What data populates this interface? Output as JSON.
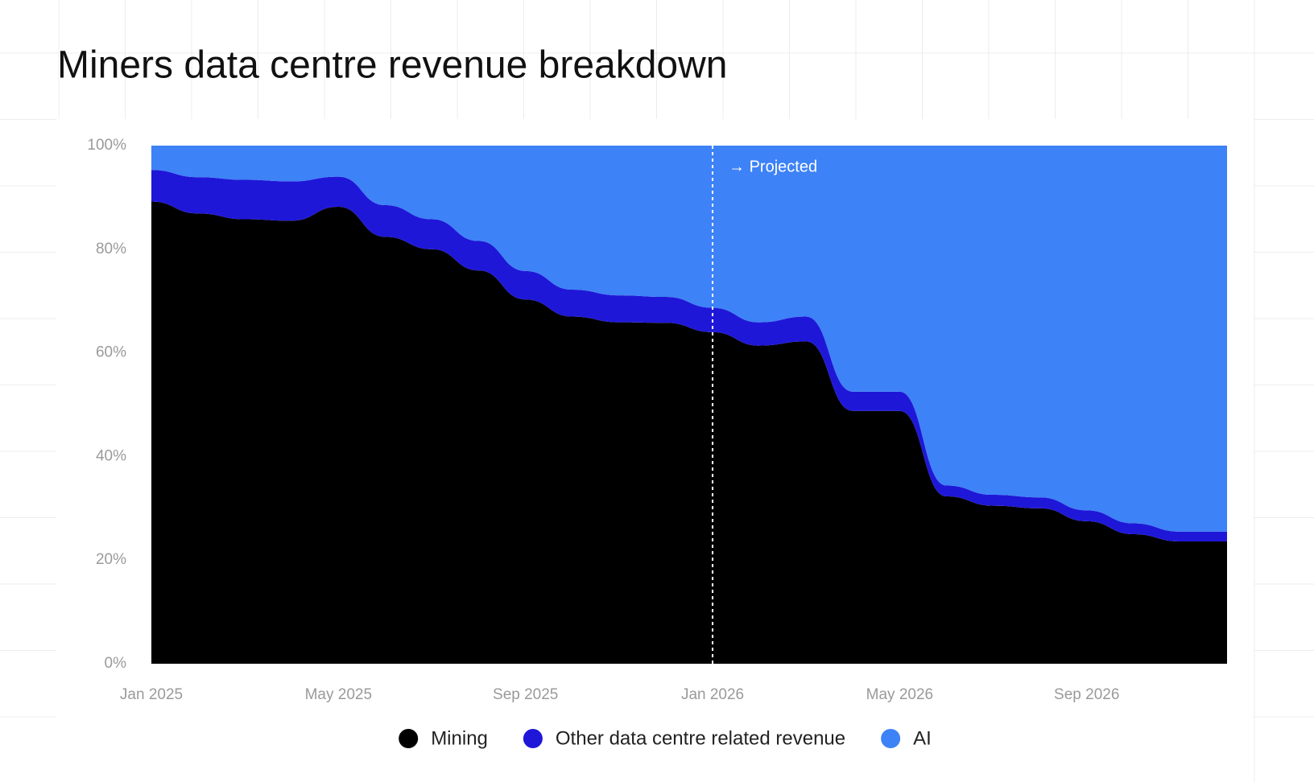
{
  "chart_data": {
    "type": "stacked_area",
    "title": "Miners data centre revenue breakdown",
    "categories": [
      "Jan 2025",
      null,
      null,
      null,
      "May 2025",
      null,
      null,
      null,
      "Sep 2025",
      null,
      null,
      null,
      "Jan 2026",
      null,
      null,
      null,
      "May 2026",
      null,
      null,
      null,
      "Sep 2026",
      null,
      null,
      null
    ],
    "series": [
      {
        "name": "Mining",
        "color": "#000000",
        "values": [
          89.2,
          86.9,
          85.8,
          85.5,
          88.2,
          82.4,
          80.0,
          75.9,
          70.3,
          67.0,
          65.9,
          65.8,
          64.0,
          61.4,
          62.2,
          48.8,
          48.8,
          32.3,
          30.5,
          30.0,
          27.5,
          25.0,
          23.6,
          23.6
        ]
      },
      {
        "name": "Other data centre related revenue",
        "color": "#1f17d8",
        "values": [
          6.1,
          7.0,
          7.6,
          7.6,
          5.8,
          6.1,
          5.8,
          5.7,
          5.5,
          5.2,
          5.2,
          5.0,
          4.7,
          4.5,
          4.8,
          3.7,
          3.7,
          2.1,
          2.1,
          2.1,
          2.1,
          2.1,
          1.9,
          1.9
        ]
      },
      {
        "name": "AI",
        "color": "#3d82f6",
        "values": [
          4.7,
          6.1,
          6.6,
          6.9,
          6.0,
          11.5,
          14.2,
          18.4,
          24.2,
          27.8,
          28.9,
          29.2,
          31.3,
          34.1,
          33.0,
          47.5,
          47.5,
          65.6,
          67.4,
          67.9,
          70.4,
          72.9,
          74.5,
          74.5
        ]
      }
    ],
    "ylim": [
      0,
      100
    ],
    "yticks": [
      {
        "value": 0,
        "label": "0%"
      },
      {
        "value": 20,
        "label": "20%"
      },
      {
        "value": 40,
        "label": "40%"
      },
      {
        "value": 60,
        "label": "60%"
      },
      {
        "value": 80,
        "label": "80%"
      },
      {
        "value": 100,
        "label": "100%"
      }
    ],
    "annotation": {
      "text": "→ Projected",
      "at": "Jan 2026"
    },
    "grid": false
  }
}
